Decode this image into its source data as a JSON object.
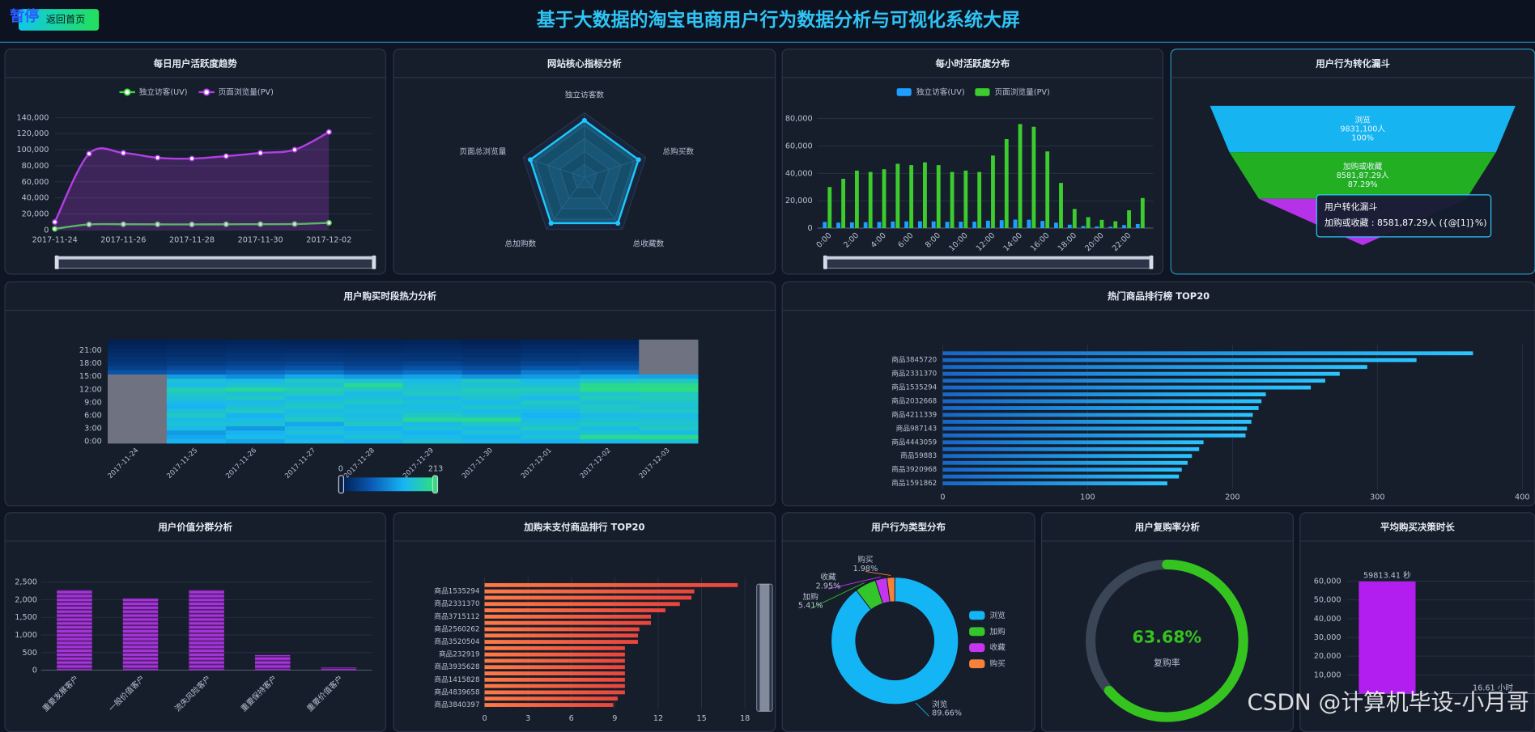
{
  "header": {
    "title": "基于大数据的淘宝电商用户行为数据分析与可视化系统大屏",
    "button": "返回首页",
    "badge": "暂停"
  },
  "chart_data": [
    {
      "type": "line",
      "title": "每日用户活跃度趋势",
      "categories": [
        "2017-11-24",
        null,
        "2017-11-26",
        null,
        "2017-11-28",
        null,
        "2017-11-30",
        null,
        "2017-12-02"
      ],
      "series": [
        {
          "name": "独立访客(UV)",
          "color": "#3ddc3d",
          "values": [
            1500,
            7000,
            7200,
            7100,
            7000,
            7200,
            7300,
            7500,
            9000
          ]
        },
        {
          "name": "页面浏览量(PV)",
          "color": "#b43ee6",
          "area": true,
          "values": [
            10000,
            95000,
            96000,
            90000,
            89000,
            92000,
            96000,
            100000,
            122000
          ]
        }
      ],
      "ylim": [
        0,
        140000
      ],
      "yticks": [
        0,
        {
          "value": 20000,
          "label": "20,000"
        },
        {
          "value": 40000,
          "label": "40,000"
        },
        {
          "value": 60000,
          "label": "60,000"
        },
        {
          "value": 80000,
          "label": "80,000"
        },
        {
          "value": 100000,
          "label": "100,000"
        },
        {
          "value": 120000,
          "label": "120,000"
        },
        {
          "value": 140000,
          "label": "140,000"
        }
      ],
      "grid": true
    },
    {
      "type": "radar",
      "title": "网站核心指标分析",
      "indicators": [
        "独立访客数",
        "总购买数",
        "总收藏数",
        "总加购数",
        "页面总浏览量"
      ],
      "values": [
        88,
        88,
        88,
        88,
        88
      ],
      "rlim": [
        0,
        100
      ],
      "color": "#1ec8ff"
    },
    {
      "type": "bar",
      "title": "每小时活跃度分布",
      "categories": [
        "0:00",
        null,
        "2:00",
        null,
        "4:00",
        null,
        "6:00",
        null,
        "8:00",
        null,
        "10:00",
        null,
        "12:00",
        null,
        "14:00",
        null,
        "16:00",
        null,
        "18:00",
        null,
        "20:00",
        null,
        "22:00",
        null
      ],
      "series": [
        {
          "name": "独立访客(UV)",
          "color": "#1e9fff",
          "values": [
            4500,
            4000,
            4200,
            4300,
            4500,
            4800,
            4900,
            5000,
            4900,
            4600,
            4700,
            4700,
            5400,
            5800,
            6200,
            6100,
            5200,
            4000,
            2500,
            1500,
            1200,
            1000,
            2200,
            3000
          ]
        },
        {
          "name": "页面浏览量(PV)",
          "color": "#3ccc2e",
          "values": [
            30000,
            36000,
            42000,
            41000,
            43000,
            47000,
            46000,
            48000,
            46000,
            41000,
            42000,
            41000,
            53000,
            65000,
            76000,
            74000,
            56000,
            33000,
            14000,
            8000,
            6000,
            5000,
            13000,
            22000
          ]
        }
      ],
      "ylim": [
        0,
        80000
      ],
      "yticks": [
        0,
        {
          "value": 20000,
          "label": "20,000"
        },
        {
          "value": 40000,
          "label": "40,000"
        },
        {
          "value": 60000,
          "label": "60,000"
        },
        {
          "value": 80000,
          "label": "80,000"
        }
      ],
      "grid": true
    },
    {
      "type": "funnel",
      "title": "用户行为转化漏斗",
      "stages": [
        {
          "name": "浏览",
          "count_label": "9831,100人",
          "value": 100,
          "value_label": "100%",
          "color": "#16b4f0"
        },
        {
          "name": "加购或收藏",
          "count_label": "8581,87.29人",
          "value": 87.29,
          "value_label": "87.29%",
          "color": "#22b022"
        },
        {
          "value": 68,
          "color": "#b532e8"
        }
      ],
      "tooltip": {
        "title": "用户转化漏斗",
        "text": "加购或收藏 : 8581,87.29人 ({@[1]}%)"
      }
    },
    {
      "type": "heatmap",
      "title": "用户购买时段热力分析",
      "x": [
        "2017-11-24",
        "2017-11-25",
        "2017-11-26",
        "2017-11-27",
        "2017-11-28",
        "2017-11-29",
        "2017-11-30",
        "2017-12-01",
        "2017-12-02",
        "2017-12-03"
      ],
      "y": [
        "0:00",
        null,
        null,
        "3:00",
        null,
        null,
        "6:00",
        null,
        null,
        "9:00",
        null,
        null,
        "12:00",
        null,
        null,
        "15:00",
        null,
        null,
        "18:00",
        null,
        null,
        "21:00",
        null,
        null
      ],
      "values": [
        [
          null,
          null,
          null,
          null,
          null,
          null,
          null,
          null,
          null,
          null,
          null,
          null,
          null,
          null,
          null,
          null,
          60,
          40,
          30,
          25,
          20,
          15,
          10,
          5
        ],
        [
          140,
          130,
          120,
          150,
          160,
          150,
          170,
          160,
          140,
          150,
          160,
          170,
          180,
          150,
          160,
          120,
          70,
          50,
          35,
          28,
          22,
          18,
          12,
          8
        ],
        [
          130,
          150,
          140,
          120,
          160,
          150,
          140,
          170,
          160,
          150,
          170,
          160,
          195,
          160,
          150,
          110,
          80,
          55,
          40,
          30,
          25,
          20,
          14,
          9
        ],
        [
          150,
          140,
          160,
          150,
          130,
          170,
          160,
          150,
          170,
          160,
          150,
          170,
          180,
          160,
          170,
          130,
          90,
          60,
          45,
          32,
          26,
          19,
          13,
          8
        ],
        [
          140,
          160,
          150,
          140,
          170,
          160,
          150,
          160,
          150,
          170,
          160,
          150,
          170,
          200,
          160,
          120,
          75,
          50,
          38,
          30,
          24,
          18,
          12,
          7
        ],
        [
          160,
          150,
          140,
          160,
          150,
          195,
          170,
          160,
          150,
          160,
          150,
          170,
          165,
          160,
          150,
          125,
          85,
          58,
          42,
          31,
          25,
          20,
          14,
          9
        ],
        [
          150,
          140,
          160,
          150,
          165,
          200,
          160,
          150,
          165,
          150,
          160,
          170,
          175,
          160,
          170,
          115,
          70,
          52,
          36,
          28,
          22,
          17,
          11,
          6
        ],
        [
          140,
          160,
          150,
          170,
          160,
          150,
          140,
          150,
          160,
          170,
          150,
          165,
          175,
          160,
          150,
          120,
          95,
          62,
          44,
          33,
          26,
          21,
          15,
          10
        ],
        [
          150,
          200,
          160,
          150,
          170,
          160,
          150,
          165,
          170,
          160,
          175,
          165,
          205,
          200,
          165,
          130,
          88,
          60,
          46,
          34,
          27,
          22,
          15,
          9
        ],
        [
          160,
          205,
          150,
          170,
          165,
          160,
          150,
          170,
          160,
          165,
          175,
          170,
          210,
          200,
          170,
          125,
          null,
          null,
          null,
          null,
          null,
          null,
          null,
          null
        ]
      ],
      "visual_range": [
        0,
        213
      ],
      "colors": [
        "#021c4c",
        "#0a5db8",
        "#17b6f5",
        "#2fe07a"
      ],
      "null_color": "#6e7281"
    },
    {
      "type": "bar",
      "horizontal": true,
      "title": "热门商品排行榜 TOP20",
      "categories": [
        null,
        "商品3845720",
        null,
        "商品2331370",
        null,
        "商品1535294",
        null,
        "商品2032668",
        null,
        "商品4211339",
        null,
        "商品987143",
        null,
        "商品4443059",
        null,
        "商品59883",
        null,
        "商品3920968",
        null,
        "商品1591862"
      ],
      "values": [
        366,
        327,
        293,
        274,
        264,
        254,
        223,
        220,
        218,
        214,
        213,
        210,
        209,
        180,
        177,
        172,
        169,
        165,
        163,
        155
      ],
      "color": [
        "#1767c8",
        "#2ac4ff"
      ],
      "xlim": [
        0,
        400
      ],
      "xticks": [
        0,
        100,
        200,
        300,
        400
      ],
      "grid": true
    },
    {
      "type": "bar",
      "title": "用户价值分群分析",
      "categories": [
        "重要发展客户",
        "一般价值客户",
        "流失风险客户",
        "重要保持客户",
        "重要价值客户"
      ],
      "values": [
        2280,
        2040,
        2280,
        430,
        80
      ],
      "color": "#a435d8",
      "striped": true,
      "ylim": [
        0,
        2500
      ],
      "yticks": [
        0,
        500,
        {
          "value": 1000,
          "label": "1,000"
        },
        {
          "value": 1500,
          "label": "1,500"
        },
        {
          "value": 2000,
          "label": "2,000"
        },
        {
          "value": 2500,
          "label": "2,500"
        }
      ],
      "grid": true
    },
    {
      "type": "bar",
      "horizontal": true,
      "title": "加购未支付商品排行 TOP20",
      "categories": [
        null,
        "商品1535294",
        null,
        "商品2331370",
        null,
        "商品3715112",
        null,
        "商品2560262",
        null,
        "商品3520504",
        null,
        "商品232919",
        null,
        "商品3935628",
        null,
        "商品1415828",
        null,
        "商品4839658",
        null,
        "商品3840397"
      ],
      "values": [
        17.5,
        14.5,
        14.3,
        13.5,
        12.5,
        11.5,
        11.5,
        10.7,
        10.6,
        10.6,
        9.7,
        9.7,
        9.7,
        9.7,
        9.7,
        9.7,
        9.7,
        9.7,
        9.2,
        8.9
      ],
      "color": [
        "#ff7a45",
        "#e8453c"
      ],
      "xlim": [
        0,
        18
      ],
      "xticks": [
        0,
        3,
        6,
        9,
        12,
        15,
        18
      ],
      "grid": true
    },
    {
      "type": "pie",
      "title": "用户行为类型分布",
      "categories": [
        "浏览",
        "加购",
        "收藏",
        "购买"
      ],
      "values": [
        89.66,
        5.41,
        2.95,
        1.98
      ],
      "value_labels": [
        "89.66%",
        "5.41%",
        "2.95%",
        "1.98%"
      ],
      "colors": [
        "#13b5f5",
        "#34c52a",
        "#c534ee",
        "#f7813a"
      ],
      "legend": "right"
    },
    {
      "type": "gauge",
      "title": "用户复购率分析",
      "value": 63.68,
      "value_label": "63.68%",
      "label": "复购率",
      "range": [
        0,
        100
      ],
      "color": "#35c31f"
    },
    {
      "type": "bar",
      "title": "平均购买决策时长",
      "values": [
        59813.41,
        16.61
      ],
      "value_labels": [
        "59813.41 秒",
        "16.61 小时"
      ],
      "color": "#b31ef0",
      "ylim": [
        0,
        60000
      ],
      "yticks": [
        {
          "value": 10000,
          "label": "10,000"
        },
        {
          "value": 20000,
          "label": "20,000"
        },
        {
          "value": 30000,
          "label": "30,000"
        },
        {
          "value": 40000,
          "label": "40,000"
        },
        {
          "value": 50000,
          "label": "50,000"
        },
        {
          "value": 60000,
          "label": "60,000"
        }
      ],
      "grid": true
    }
  ],
  "watermark": "CSDN @计算机毕设-小月哥"
}
